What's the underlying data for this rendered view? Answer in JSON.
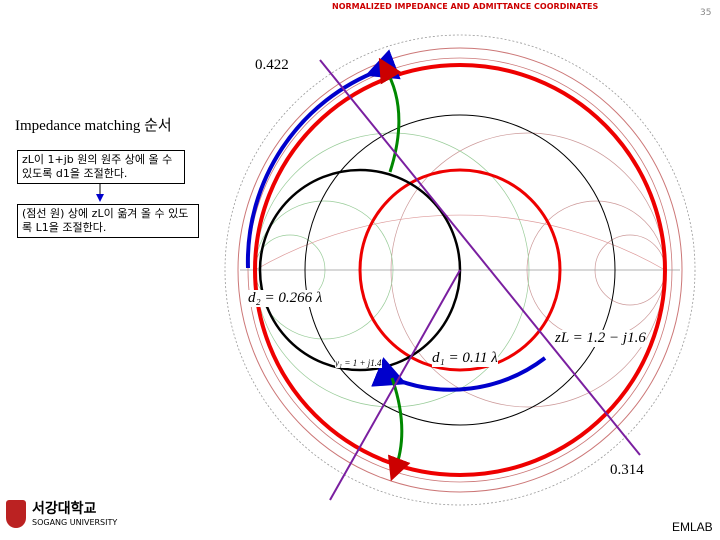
{
  "header": {
    "chart_title": "NORMALIZED IMPEDANCE AND ADMITTANCE COORDINATES",
    "page_number": "35"
  },
  "annotations": {
    "top_value": "0.422",
    "bottom_value": "0.314",
    "d2": "d₂ = 0.266 λ",
    "d1": "d₁ = 0.11 λ",
    "zl": "zL = 1.2 − j1.6",
    "y1": "y₁ = 1 + j1.4"
  },
  "steps": {
    "title": "Impedance matching 순서",
    "items": [
      "zL이 1+jb 원의 원주 상에 올 수 있도록 d1을 조절한다.",
      "(점선 원) 상에 zL이 옮겨 올 수 있도록 L1을 조절한다."
    ]
  },
  "footer": {
    "university_kr": "서강대학교",
    "university_en": "SOGANG UNIVERSITY",
    "lab": "EMLAB"
  }
}
